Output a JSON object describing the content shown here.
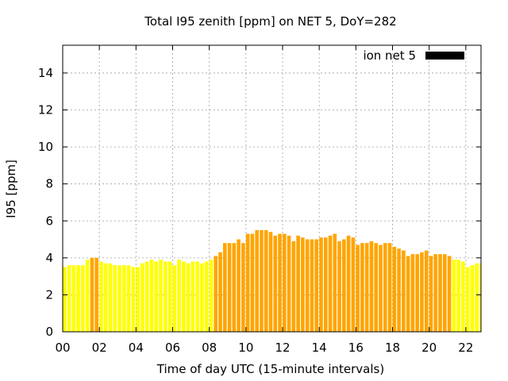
{
  "chart_data": {
    "type": "bar",
    "title": "Total I95 zenith [ppm] on NET 5, DoY=282",
    "xlabel": "Time of day UTC (15-minute intervals)",
    "ylabel": "I95 [ppm]",
    "xlim": [
      0,
      22.83
    ],
    "ylim": [
      0,
      15.5
    ],
    "x_ticks": [
      0,
      2,
      4,
      6,
      8,
      10,
      12,
      14,
      16,
      18,
      20,
      22
    ],
    "x_tick_labels": [
      "00",
      "02",
      "04",
      "06",
      "08",
      "10",
      "12",
      "14",
      "16",
      "18",
      "20",
      "22"
    ],
    "y_ticks": [
      0,
      2,
      4,
      6,
      8,
      10,
      12,
      14
    ],
    "y_tick_labels": [
      "0",
      "2",
      "4",
      "6",
      "8",
      "10",
      "12",
      "14"
    ],
    "grid": true,
    "legend": {
      "position": "top-right",
      "label": "ion net 5",
      "color": "#000000"
    },
    "colors": {
      "low": "#ffff00",
      "high": "#ffa500"
    },
    "color_threshold": 4.0,
    "bar_width_hours": 0.2,
    "series": [
      {
        "x": [
          0.0,
          0.25,
          0.5,
          0.75,
          1.0,
          1.25,
          1.5,
          1.75,
          2.0,
          2.25,
          2.5,
          2.75,
          3.0,
          3.25,
          3.5,
          3.75,
          4.0,
          4.25,
          4.5,
          4.75,
          5.0,
          5.25,
          5.5,
          5.75,
          6.0,
          6.25,
          6.5,
          6.75,
          7.0,
          7.25,
          7.5,
          7.75,
          8.0,
          8.25,
          8.5,
          8.75,
          9.0,
          9.25,
          9.5,
          9.75,
          10.0,
          10.25,
          10.5,
          10.75,
          11.0,
          11.25,
          11.5,
          11.75,
          12.0,
          12.25,
          12.5,
          12.75,
          13.0,
          13.25,
          13.5,
          13.75,
          14.0,
          14.25,
          14.5,
          14.75,
          15.0,
          15.25,
          15.5,
          15.75,
          16.0,
          16.25,
          16.5,
          16.75,
          17.0,
          17.25,
          17.5,
          17.75,
          18.0,
          18.25,
          18.5,
          18.75,
          19.0,
          19.25,
          19.5,
          19.75,
          20.0,
          20.25,
          20.5,
          20.75,
          21.0,
          21.25,
          21.5,
          21.75,
          22.0,
          22.25,
          22.5,
          22.75
        ],
        "values": [
          3.5,
          3.6,
          3.6,
          3.6,
          3.6,
          3.9,
          4.0,
          4.0,
          3.8,
          3.7,
          3.7,
          3.6,
          3.6,
          3.6,
          3.6,
          3.5,
          3.5,
          3.7,
          3.8,
          3.9,
          3.8,
          3.9,
          3.8,
          3.8,
          3.6,
          3.9,
          3.8,
          3.7,
          3.8,
          3.8,
          3.7,
          3.8,
          3.9,
          4.1,
          4.3,
          4.8,
          4.8,
          4.8,
          5.0,
          4.8,
          5.3,
          5.3,
          5.5,
          5.5,
          5.5,
          5.4,
          5.2,
          5.3,
          5.3,
          5.2,
          4.9,
          5.2,
          5.1,
          5.0,
          5.0,
          5.0,
          5.1,
          5.1,
          5.2,
          5.3,
          4.9,
          5.0,
          5.2,
          5.1,
          4.7,
          4.8,
          4.8,
          4.9,
          4.8,
          4.7,
          4.8,
          4.8,
          4.6,
          4.5,
          4.4,
          4.1,
          4.2,
          4.2,
          4.3,
          4.4,
          4.1,
          4.2,
          4.2,
          4.2,
          4.1,
          3.9,
          3.9,
          3.8,
          3.5,
          3.6,
          3.7,
          3.7
        ]
      }
    ]
  }
}
